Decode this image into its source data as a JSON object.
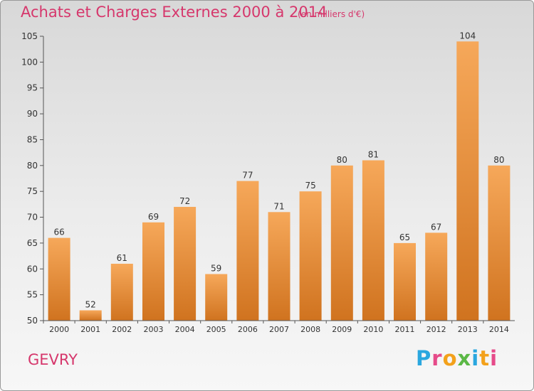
{
  "header": {
    "title": "Achats et Charges Externes 2000 à 2014",
    "subtitle": "(en milliers d'€)"
  },
  "footer": {
    "town": "GEVRY",
    "logo_text": "Proxiti",
    "logo_colors": [
      "#2aa7df",
      "#e64b8a",
      "#f3a11b",
      "#5bb846",
      "#2aa7df",
      "#f3a11b",
      "#e64b8a"
    ]
  },
  "chart_data": {
    "type": "bar",
    "categories": [
      "2000",
      "2001",
      "2002",
      "2003",
      "2004",
      "2005",
      "2006",
      "2007",
      "2008",
      "2009",
      "2010",
      "2011",
      "2012",
      "2013",
      "2014"
    ],
    "values": [
      66,
      52,
      61,
      69,
      72,
      59,
      77,
      71,
      75,
      80,
      81,
      65,
      67,
      104,
      80
    ],
    "ylim": [
      50,
      105
    ],
    "yticks": [
      50,
      55,
      60,
      65,
      70,
      75,
      80,
      85,
      90,
      95,
      100,
      105
    ],
    "grid": false,
    "bar_color": "#f0a050"
  }
}
